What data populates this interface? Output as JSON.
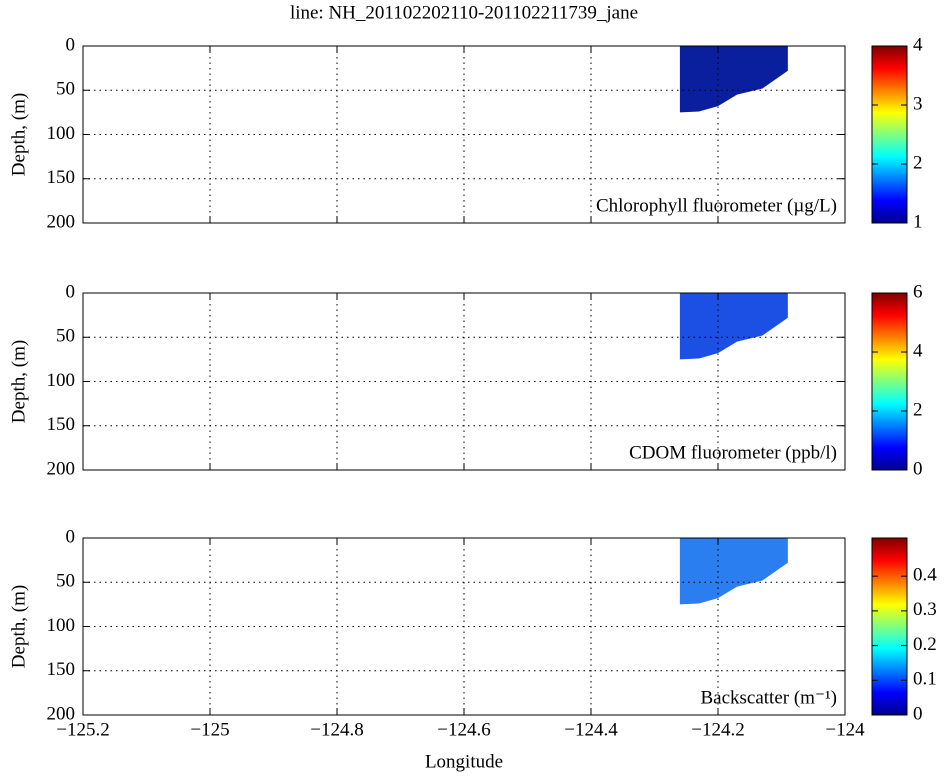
{
  "chart_data": [
    {
      "type": "section",
      "title": "line: NH_201102202110-201102211739_jane",
      "ylabel": "Depth, (m)",
      "annotation": "Chlorophyll fluorometer (µg/L)",
      "xlim": [
        -125.2,
        -124
      ],
      "xticks": [
        -125.2,
        -125,
        -124.8,
        -124.6,
        -124.4,
        -124.2,
        -124
      ],
      "ylim": [
        0,
        200
      ],
      "yticks": [
        0,
        50,
        100,
        150,
        200
      ],
      "grid": true,
      "color": "#0a1f9e",
      "outline": {
        "x": [
          -124.26,
          -124.24,
          -124.09,
          -124.09,
          -124.13,
          -124.17,
          -124.2,
          -124.23,
          -124.26
        ],
        "y": [
          0,
          0,
          0,
          28,
          48,
          55,
          68,
          74,
          75
        ]
      },
      "clim": [
        1,
        4
      ],
      "cticks": [
        1,
        2,
        3,
        4
      ]
    },
    {
      "type": "section",
      "ylabel": "Depth, (m)",
      "annotation": "CDOM fluorometer (ppb/l)",
      "xlim": [
        -125.2,
        -124
      ],
      "xticks": [
        -125.2,
        -125,
        -124.8,
        -124.6,
        -124.4,
        -124.2,
        -124
      ],
      "ylim": [
        0,
        200
      ],
      "yticks": [
        0,
        50,
        100,
        150,
        200
      ],
      "grid": true,
      "color": "#1c4fe4",
      "outline": {
        "x": [
          -124.26,
          -124.24,
          -124.09,
          -124.09,
          -124.13,
          -124.17,
          -124.2,
          -124.23,
          -124.26
        ],
        "y": [
          0,
          0,
          0,
          28,
          48,
          55,
          68,
          74,
          75
        ]
      },
      "clim": [
        0,
        6
      ],
      "cticks": [
        0,
        2,
        4,
        6
      ]
    },
    {
      "type": "section",
      "ylabel": "Depth, (m)",
      "annotation": "Backscatter (m⁻¹)",
      "xlabel": "Longitude",
      "xlim": [
        -125.2,
        -124
      ],
      "xticks": [
        {
          "value": -125.2,
          "label": "−125.2"
        },
        {
          "value": -125,
          "label": "−125"
        },
        {
          "value": -124.8,
          "label": "−124.8"
        },
        {
          "value": -124.6,
          "label": "−124.6"
        },
        {
          "value": -124.4,
          "label": "−124.4"
        },
        {
          "value": -124.2,
          "label": "−124.2"
        },
        {
          "value": -124,
          "label": "−124"
        }
      ],
      "ylim": [
        0,
        200
      ],
      "yticks": [
        0,
        50,
        100,
        150,
        200
      ],
      "grid": true,
      "color": "#2a7ef0",
      "outline": {
        "x": [
          -124.26,
          -124.24,
          -124.09,
          -124.09,
          -124.13,
          -124.17,
          -124.2,
          -124.23,
          -124.26
        ],
        "y": [
          0,
          0,
          0,
          28,
          48,
          55,
          68,
          74,
          75
        ]
      },
      "clim": [
        0,
        0.51
      ],
      "cticks": [
        0,
        0.1,
        0.2,
        0.3,
        0.4
      ]
    }
  ]
}
